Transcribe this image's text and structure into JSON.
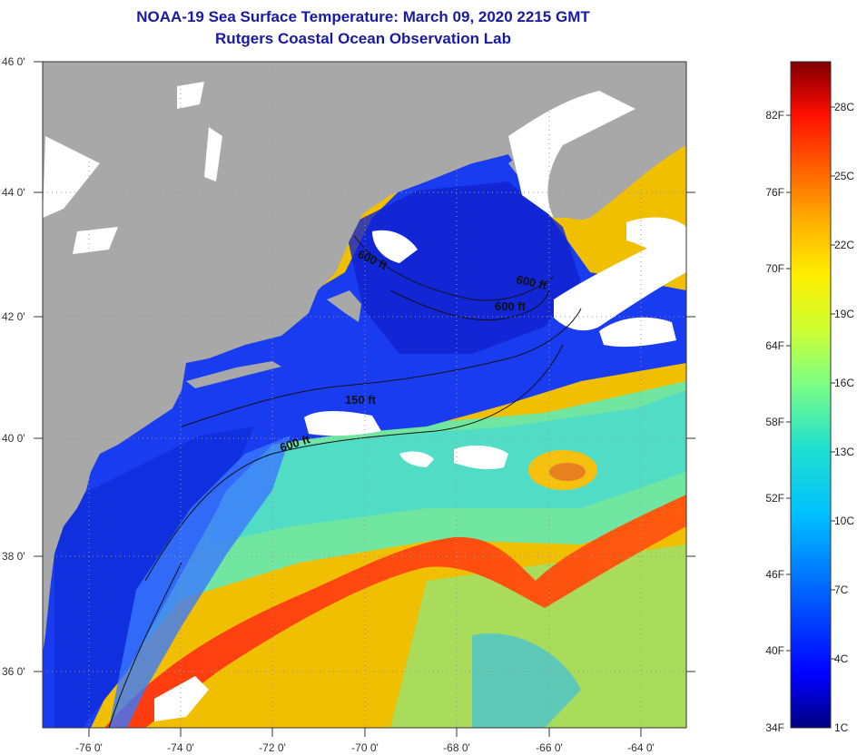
{
  "title_line1": "NOAA-19 Sea Surface Temperature:  March 09, 2020 2215 GMT",
  "title_line2": "Rutgers Coastal Ocean Observation Lab",
  "map": {
    "lon_ticks": [
      "-76 0'",
      "-74 0'",
      "-72 0'",
      "-70 0'",
      "-68 0'",
      "-66 0'",
      "-64 0'"
    ],
    "lat_ticks": [
      "46 0'",
      "44 0'",
      "42 0'",
      "40 0'",
      "38 0'",
      "36 0'"
    ],
    "contours": [
      "600 ft",
      "600 ft",
      "600 ft",
      "150 ft",
      "600 ft"
    ]
  },
  "colorbar": {
    "fahrenheit": [
      "82F",
      "76F",
      "70F",
      "64F",
      "58F",
      "52F",
      "46F",
      "40F",
      "34F"
    ],
    "celsius": [
      "28C",
      "25C",
      "22C",
      "19C",
      "16C",
      "13C",
      "10C",
      "7C",
      "4C",
      "1C"
    ],
    "gradient_colors": [
      "#00007f",
      "#0000ff",
      "#0060ff",
      "#00c0ff",
      "#20e0d0",
      "#80ff80",
      "#d0ff30",
      "#ffee00",
      "#ffb000",
      "#ff6000",
      "#ff1000",
      "#b00000",
      "#7f0000"
    ]
  },
  "colors": {
    "land": "#a8a8a8",
    "cloud": "#ffffff",
    "title": "#1a1aa0"
  }
}
